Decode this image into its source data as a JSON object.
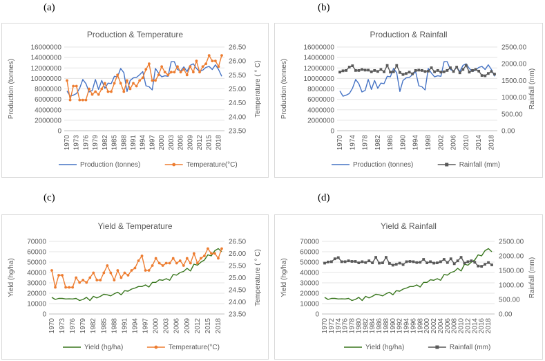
{
  "panel_labels": [
    "(a)",
    "(b)",
    "(c)",
    "(d)"
  ],
  "chart_data": [
    {
      "id": "a",
      "type": "line",
      "title": "Production & Temperature",
      "x_labels": [
        "1970",
        "1973",
        "1976",
        "1979",
        "1982",
        "1985",
        "1988",
        "1991",
        "1994",
        "1997",
        "2000",
        "2003",
        "2006",
        "2009",
        "2012",
        "2015",
        "2018"
      ],
      "y_left": {
        "label": "Production (tonnes)",
        "ticks": [
          "0",
          "2000000",
          "4000000",
          "6000000",
          "8000000",
          "10000000",
          "12000000",
          "14000000",
          "16000000"
        ],
        "range": [
          0,
          16000000
        ]
      },
      "y_right": {
        "label": "Temperature ( ° C)",
        "ticks": [
          "23.50",
          "24.00",
          "24.50",
          "25.00",
          "25.50",
          "26.00",
          "26.50"
        ],
        "range": [
          23.5,
          26.5
        ]
      },
      "series": [
        {
          "name": "Production (tonnes)",
          "axis": "left",
          "color": "#4472c4",
          "marker": "none",
          "values": [
            7600000,
            6600000,
            6800000,
            7100000,
            8100000,
            9800000,
            9000000,
            7400000,
            7700000,
            9800000,
            7900000,
            9600000,
            8100000,
            9100000,
            9000000,
            10400000,
            10300000,
            11900000,
            11100000,
            7500000,
            9600000,
            10100000,
            10200000,
            10700000,
            11300000,
            8600000,
            8400000,
            7800000,
            11900000,
            11000000,
            10300000,
            10500000,
            10400000,
            13200000,
            13200000,
            11700000,
            11400000,
            12200000,
            11300000,
            12500000,
            12800000,
            11900000,
            11300000,
            11600000,
            12100000,
            12300000,
            11700000,
            12600000,
            11700000,
            10400000
          ]
        },
        {
          "name": "Temperature(°C)",
          "axis": "right",
          "color": "#ed7d31",
          "marker": "circle",
          "values": [
            25.3,
            24.6,
            25.1,
            25.1,
            24.6,
            24.6,
            24.6,
            25.0,
            24.8,
            24.9,
            24.8,
            25.0,
            25.2,
            24.9,
            24.9,
            25.2,
            25.5,
            25.2,
            24.9,
            25.3,
            25.0,
            25.2,
            25.1,
            25.3,
            25.4,
            25.7,
            25.9,
            25.3,
            25.3,
            25.5,
            25.8,
            25.6,
            25.5,
            25.6,
            25.6,
            25.8,
            25.6,
            25.7,
            25.5,
            25.8,
            25.6,
            26.0,
            25.6,
            25.8,
            25.9,
            26.2,
            26.0,
            26.0,
            25.8,
            26.2
          ]
        }
      ]
    },
    {
      "id": "b",
      "type": "line",
      "title": "Production & Rainfall",
      "x_labels": [
        "1970",
        "1974",
        "1978",
        "1982",
        "1986",
        "1990",
        "1994",
        "1998",
        "2002",
        "2006",
        "2010",
        "2014",
        "2018"
      ],
      "y_left": {
        "label": "Production (tonnes)",
        "ticks": [
          "0",
          "2000000",
          "4000000",
          "6000000",
          "8000000",
          "10000000",
          "12000000",
          "14000000",
          "16000000"
        ],
        "range": [
          0,
          16000000
        ]
      },
      "y_right": {
        "label": "Rainfall (mm)",
        "ticks": [
          "0.00",
          "500.00",
          "1000.00",
          "1500.00",
          "2000.00",
          "2500.00"
        ],
        "range": [
          0,
          2500
        ]
      },
      "series": [
        {
          "name": "Production (tonnes)",
          "axis": "left",
          "color": "#4472c4",
          "marker": "none",
          "values": [
            7600000,
            6600000,
            6800000,
            7100000,
            8100000,
            9800000,
            9000000,
            7400000,
            7700000,
            9800000,
            7900000,
            9600000,
            8100000,
            9100000,
            9000000,
            10400000,
            10300000,
            11900000,
            11100000,
            7500000,
            9600000,
            10100000,
            10200000,
            10700000,
            11300000,
            8600000,
            8400000,
            7800000,
            11900000,
            11000000,
            10300000,
            10500000,
            10400000,
            13200000,
            13200000,
            11700000,
            11400000,
            12200000,
            11300000,
            12500000,
            12800000,
            11900000,
            11300000,
            11600000,
            12100000,
            12300000,
            11700000,
            12600000,
            11700000,
            10400000
          ]
        },
        {
          "name": "Rainfall (mm)",
          "axis": "right",
          "color": "#595959",
          "marker": "square",
          "values": [
            1750,
            1790,
            1800,
            1900,
            1940,
            1800,
            1800,
            1830,
            1810,
            1810,
            1760,
            1800,
            1770,
            1830,
            1760,
            1950,
            1750,
            1760,
            1950,
            1740,
            1680,
            1710,
            1750,
            1700,
            1800,
            1810,
            1800,
            1770,
            1780,
            1880,
            1760,
            1800,
            1750,
            1760,
            1800,
            1880,
            1770,
            1900,
            1730,
            1830,
            1950,
            1750,
            1800,
            1830,
            1780,
            1650,
            1640,
            1710,
            1770,
            1690
          ]
        }
      ]
    },
    {
      "id": "c",
      "type": "line",
      "title": "Yield & Temperature",
      "x_labels": [
        "1970",
        "1973",
        "1976",
        "1979",
        "1982",
        "1985",
        "1988",
        "1991",
        "1994",
        "1997",
        "2000",
        "2003",
        "2006",
        "2009",
        "2012",
        "2015",
        "2018"
      ],
      "y_left": {
        "label": "Yield (hg/ha)",
        "ticks": [
          "0",
          "10000",
          "20000",
          "30000",
          "40000",
          "50000",
          "60000",
          "70000"
        ],
        "range": [
          0,
          70000
        ]
      },
      "y_right": {
        "label": "Temperature ( ° C)",
        "ticks": [
          "23.50",
          "24.00",
          "24.50",
          "25.00",
          "25.50",
          "26.00",
          "26.50"
        ],
        "range": [
          23.5,
          26.5
        ]
      },
      "series": [
        {
          "name": "Yield (hg/ha)",
          "axis": "left",
          "color": "#38761d",
          "marker": "none",
          "values": [
            16000,
            14000,
            15000,
            15000,
            14500,
            14600,
            14500,
            15000,
            13000,
            14000,
            16000,
            13000,
            17000,
            15500,
            17000,
            19000,
            18500,
            17500,
            19500,
            21000,
            18500,
            22500,
            22000,
            24000,
            25000,
            26500,
            26500,
            28000,
            26000,
            30500,
            30500,
            33000,
            32500,
            34000,
            32500,
            38000,
            37500,
            40000,
            41000,
            44000,
            41500,
            48000,
            47000,
            50000,
            52000,
            57000,
            56000,
            61000,
            63000,
            60000
          ]
        },
        {
          "name": "Temperature(°C)",
          "axis": "right",
          "color": "#ed7d31",
          "marker": "circle",
          "values": [
            25.3,
            24.6,
            25.1,
            25.1,
            24.6,
            24.6,
            24.6,
            25.0,
            24.8,
            24.9,
            24.8,
            25.0,
            25.2,
            24.9,
            24.9,
            25.2,
            25.5,
            25.2,
            24.9,
            25.3,
            25.0,
            25.2,
            25.1,
            25.3,
            25.4,
            25.7,
            25.9,
            25.3,
            25.3,
            25.5,
            25.8,
            25.6,
            25.5,
            25.6,
            25.6,
            25.8,
            25.6,
            25.7,
            25.5,
            25.8,
            25.6,
            26.0,
            25.6,
            25.8,
            25.9,
            26.2,
            26.0,
            26.0,
            25.8,
            26.2
          ]
        }
      ]
    },
    {
      "id": "d",
      "type": "line",
      "title": "Yield & Rainfall",
      "x_labels": [
        "1970",
        "1972",
        "1974",
        "1976",
        "1978",
        "1980",
        "1982",
        "1984",
        "1986",
        "1988",
        "1990",
        "1992",
        "1994",
        "1996",
        "1998",
        "2000",
        "2002",
        "2004",
        "2006",
        "2008",
        "2010",
        "2012",
        "2014",
        "2016",
        "2018"
      ],
      "y_left": {
        "label": "Yield (hg/ha)",
        "ticks": [
          "0",
          "10000",
          "20000",
          "30000",
          "40000",
          "50000",
          "60000",
          "70000"
        ],
        "range": [
          0,
          70000
        ]
      },
      "y_right": {
        "label": "Rainfall (mm)",
        "ticks": [
          "0.00",
          "500.00",
          "1000.00",
          "1500.00",
          "2000.00",
          "2500.00"
        ],
        "range": [
          0,
          2500
        ]
      },
      "series": [
        {
          "name": "Yield (hg/ha)",
          "axis": "left",
          "color": "#38761d",
          "marker": "none",
          "values": [
            16000,
            14000,
            15000,
            15000,
            14500,
            14600,
            14500,
            15000,
            13000,
            14000,
            16000,
            13000,
            17000,
            15500,
            17000,
            19000,
            18500,
            17500,
            19500,
            21000,
            18500,
            22500,
            22000,
            24000,
            25000,
            26500,
            26500,
            28000,
            26000,
            30500,
            30500,
            33000,
            32500,
            34000,
            32500,
            38000,
            37500,
            40000,
            41000,
            44000,
            41500,
            48000,
            47000,
            50000,
            52000,
            57000,
            56000,
            61000,
            63000,
            60000
          ]
        },
        {
          "name": "Rainfall (mm)",
          "axis": "right",
          "color": "#595959",
          "marker": "square",
          "values": [
            1750,
            1790,
            1800,
            1900,
            1940,
            1800,
            1800,
            1830,
            1810,
            1810,
            1760,
            1800,
            1770,
            1830,
            1760,
            1950,
            1750,
            1760,
            1950,
            1740,
            1680,
            1710,
            1750,
            1700,
            1800,
            1810,
            1800,
            1770,
            1780,
            1880,
            1760,
            1800,
            1750,
            1760,
            1800,
            1880,
            1770,
            1900,
            1730,
            1830,
            1950,
            1750,
            1800,
            1830,
            1780,
            1650,
            1640,
            1710,
            1770,
            1690
          ]
        }
      ]
    }
  ]
}
